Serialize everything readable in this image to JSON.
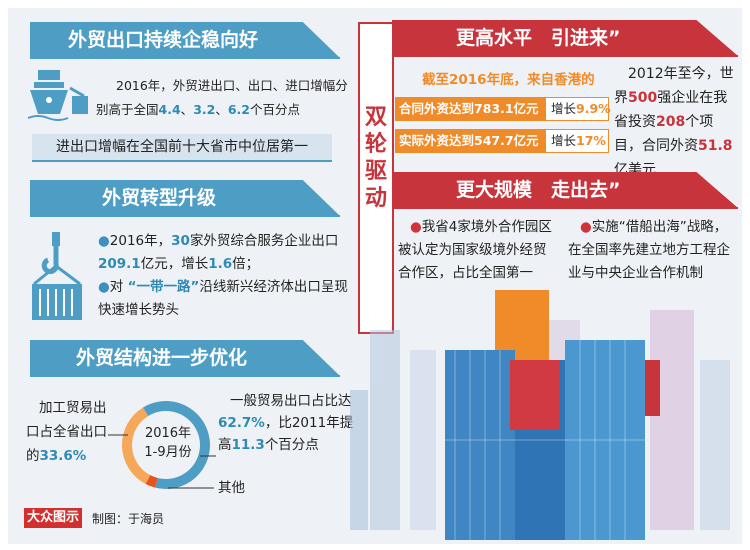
{
  "left": {
    "section1": {
      "title": "外贸出口持续企稳向好",
      "text_a": "2016年，外贸进出口、出口、进口增幅分",
      "text_b": "别高于全国",
      "values": [
        "4.4",
        "3.2",
        "6.2"
      ],
      "sep": "、",
      "text_c": "个百分点",
      "strip": "进出口增幅在全国前十大省市中位居第一",
      "icon": "ship-icon"
    },
    "section2": {
      "title": "外贸转型升级",
      "b1_a": "2016年，",
      "b1_v1": "30",
      "b1_b": "家外贸综合服务企业出口",
      "b1_v2": "209.1",
      "b1_c": "亿元，增长",
      "b1_v3": "1.6",
      "b1_d": "倍；",
      "b2_a": "对",
      "b2_v": "“一带一路”",
      "b2_b": "沿线新兴经济体出口呈现快速增长势头",
      "icon": "container-crane-icon"
    },
    "section3": {
      "title": "外贸结构进一步优化",
      "center_line1": "2016年",
      "center_line2": "1-9月份",
      "left_a": "加工贸易出口占全省出口的",
      "left_v": "33.6%",
      "right_a": "一般贸易出口占比达",
      "right_v": "62.7%",
      "right_b": "，比2011年提高",
      "right_v2": "11.3",
      "right_c": "个百分点",
      "other": "其他"
    },
    "footer": {
      "logo": "大众图示",
      "credit": "制图：于海员"
    }
  },
  "center_title": "双轮驱动",
  "right": {
    "section1": {
      "title": "更高水平　引进来”",
      "subtitle": "截至2016年底，来自香港的",
      "rows": [
        {
          "label": "合同外资达到783.1亿元",
          "growth_label": "增长",
          "growth": "9.9%"
        },
        {
          "label": "实际外资达到547.7亿元",
          "growth_label": "增长",
          "growth": "17%"
        }
      ],
      "side_a": "2012年至今，世界",
      "side_v1": "500",
      "side_b": "强企业在我省投资",
      "side_v2": "208",
      "side_c": "个项目，合同外资",
      "side_v3": "51.8",
      "side_d": "亿美元"
    },
    "section2": {
      "title": "更大规模　走出去”",
      "b1": "我省4家境外合作园区被认定为国家级境外经贸合作区，占比全国第一",
      "b2": "实施“借船出海”战略，在全国率先建立地方工程企业与中央企业合作机制"
    }
  },
  "colors": {
    "blue": "#4d9dc5",
    "red": "#c8343b",
    "orange": "#f08b2a",
    "other": "#e8541e"
  },
  "chart_data": {
    "type": "pie",
    "donut": true,
    "title": "2016年 1-9月份",
    "categories": [
      "一般贸易",
      "加工贸易",
      "其他"
    ],
    "values": [
      62.7,
      33.6,
      3.7
    ],
    "colors": [
      "#4d9dc5",
      "#f5a85a",
      "#e8541e"
    ]
  }
}
